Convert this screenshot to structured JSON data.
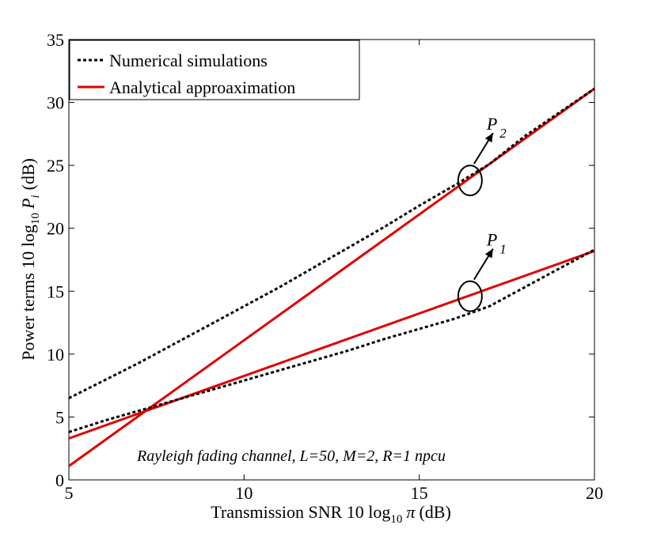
{
  "chart_data": {
    "type": "line",
    "xlabel_main": "Transmission SNR 10 log",
    "xlabel_sub": "10",
    "xlabel_var": "π",
    "xlabel_unit": "(dB)",
    "ylabel_main": "Power terms 10 log",
    "ylabel_sub": "10",
    "ylabel_var": "P",
    "ylabel_var_sub": "i",
    "ylabel_unit": "(dB)",
    "xlim": [
      5,
      20
    ],
    "ylim": [
      0,
      35
    ],
    "x_ticks": [
      5,
      10,
      15,
      20
    ],
    "y_ticks": [
      0,
      5,
      10,
      15,
      20,
      25,
      30,
      35
    ],
    "legend": {
      "placement": "top-left",
      "entries": [
        {
          "label": "Numerical simulations",
          "style": "dotted",
          "color": "#000000"
        },
        {
          "label": "Analytical approaximation",
          "style": "solid",
          "color": "#e00000"
        }
      ]
    },
    "annotation": "Rayleigh fading channel, L=50, M=2, R=1 npcu",
    "series": [
      {
        "name": "P2 numerical",
        "legend": "Numerical simulations",
        "style": "dotted",
        "color": "#000000",
        "x": [
          5,
          6,
          7,
          8,
          9,
          10,
          11,
          12,
          13,
          14,
          15,
          16,
          17,
          18,
          19,
          20
        ],
        "y": [
          6.5,
          7.9,
          9.3,
          10.8,
          12.3,
          13.8,
          15.3,
          16.9,
          18.5,
          20.1,
          21.8,
          23.4,
          25.1,
          27.3,
          29.2,
          31.1
        ]
      },
      {
        "name": "P2 analytical",
        "legend": "Analytical approaximation",
        "style": "solid",
        "color": "#e00000",
        "x": [
          5,
          20
        ],
        "y": [
          1.1,
          31.1
        ]
      },
      {
        "name": "P1 numerical",
        "legend": "Numerical simulations",
        "style": "dotted",
        "color": "#000000",
        "x": [
          5,
          6,
          7,
          8,
          9,
          10,
          11,
          12,
          13,
          14,
          15,
          16,
          17,
          18,
          19,
          20
        ],
        "y": [
          3.8,
          4.7,
          5.5,
          6.3,
          7.1,
          7.9,
          8.7,
          9.5,
          10.3,
          11.2,
          12.0,
          12.8,
          13.8,
          15.3,
          16.8,
          18.3
        ]
      },
      {
        "name": "P1 analytical",
        "legend": "Analytical approaximation",
        "style": "solid",
        "color": "#e00000",
        "x": [
          5,
          20
        ],
        "y": [
          3.3,
          18.2
        ]
      }
    ],
    "markers": [
      {
        "label": "P",
        "sub": "2",
        "x": 16.45,
        "y": 23.8
      },
      {
        "label": "P",
        "sub": "1",
        "x": 16.45,
        "y": 14.6
      }
    ]
  }
}
